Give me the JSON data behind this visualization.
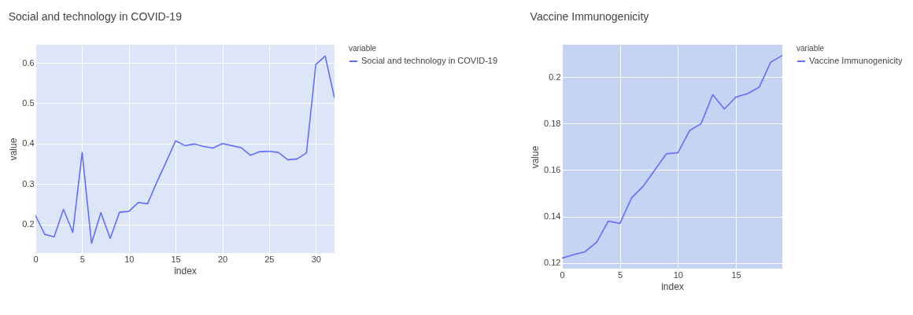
{
  "chart_data": [
    {
      "type": "line",
      "title": "Social and technology in COVID-19",
      "xlabel": "index",
      "ylabel": "value",
      "legend_title": "variable",
      "x": [
        0,
        1,
        2,
        3,
        4,
        5,
        6,
        7,
        8,
        9,
        10,
        11,
        12,
        13,
        14,
        15,
        16,
        17,
        18,
        19,
        20,
        21,
        22,
        23,
        24,
        25,
        26,
        27,
        28,
        29,
        30,
        31,
        32
      ],
      "series": [
        {
          "name": "Social and technology in COVID-19",
          "color": "#636efa",
          "values": [
            0.222,
            0.175,
            0.169,
            0.237,
            0.18,
            0.378,
            0.153,
            0.229,
            0.165,
            0.23,
            0.232,
            0.254,
            0.251,
            0.305,
            0.355,
            0.407,
            0.395,
            0.399,
            0.393,
            0.389,
            0.4,
            0.395,
            0.39,
            0.371,
            0.38,
            0.381,
            0.378,
            0.36,
            0.362,
            0.377,
            0.596,
            0.617,
            0.513
          ]
        }
      ],
      "xlim": [
        0,
        32
      ],
      "ylim": [
        0.129,
        0.645
      ],
      "xticks": [
        0,
        5,
        10,
        15,
        20,
        25,
        30
      ],
      "yticks": [
        0.2,
        0.3,
        0.4,
        0.5,
        0.6
      ],
      "grid": true,
      "legend": "top right"
    },
    {
      "type": "line",
      "title": "Vaccine Immunogenicity",
      "xlabel": "index",
      "ylabel": "value",
      "legend_title": "variable",
      "x": [
        0,
        1,
        2,
        3,
        4,
        5,
        6,
        7,
        8,
        9,
        10,
        11,
        12,
        13,
        14,
        15,
        16,
        17,
        18,
        19
      ],
      "series": [
        {
          "name": "Vaccine Immunogenicity",
          "color": "#636efa",
          "values": [
            0.122,
            0.1235,
            0.1248,
            0.129,
            0.138,
            0.137,
            0.148,
            0.153,
            0.16,
            0.167,
            0.1675,
            0.177,
            0.18,
            0.1925,
            0.1863,
            0.1915,
            0.1929,
            0.1957,
            0.2065,
            0.2094
          ]
        }
      ],
      "xlim": [
        0,
        19
      ],
      "ylim": [
        0.1175,
        0.214
      ],
      "xticks": [
        0,
        5,
        10,
        15
      ],
      "yticks": [
        0.12,
        0.14,
        0.16,
        0.18,
        0.2
      ],
      "grid": true,
      "legend": "top right"
    }
  ]
}
